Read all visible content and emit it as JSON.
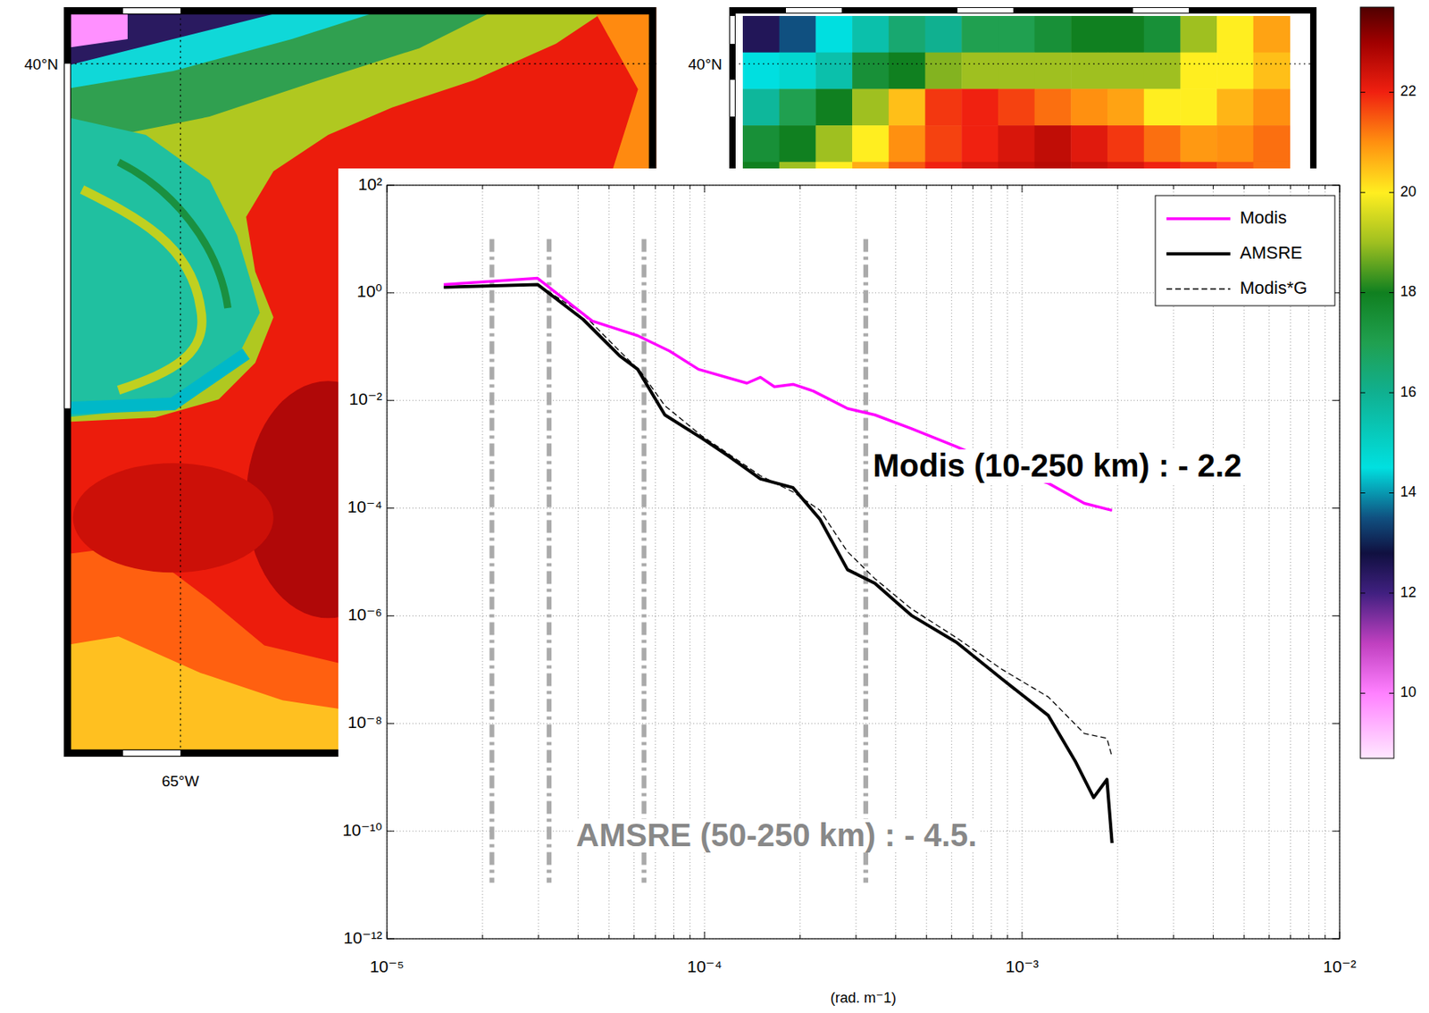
{
  "chart_data": {
    "type": "line",
    "xlabel": "(rad. m⁻1)",
    "log": true,
    "grid": true,
    "legend": "top right",
    "xlim": [
      1e-05,
      0.01
    ],
    "ylim": [
      1e-12,
      100.0
    ],
    "xticks": [
      {
        "value": 1e-05,
        "label": "10⁻⁵"
      },
      {
        "value": 0.0001,
        "label": "10⁻⁴"
      },
      {
        "value": 0.001,
        "label": "10⁻³"
      },
      {
        "value": 0.01,
        "label": "10⁻²"
      }
    ],
    "xminor_ticks": [
      2e-05,
      3e-05,
      4e-05,
      5e-05,
      6e-05,
      7e-05,
      8e-05,
      9e-05,
      0.0002,
      0.0003,
      0.0004,
      0.0005,
      0.0006,
      0.0007,
      0.0008,
      0.0009,
      0.002,
      0.003,
      0.004,
      0.005,
      0.006,
      0.007,
      0.008,
      0.009
    ],
    "yticks": [
      {
        "value": 100.0,
        "label": "10²"
      },
      {
        "value": 1.0,
        "label": "10⁰"
      },
      {
        "value": 0.01,
        "label": "10⁻²"
      },
      {
        "value": 0.0001,
        "label": "10⁻⁴"
      },
      {
        "value": 1e-06,
        "label": "10⁻⁶"
      },
      {
        "value": 1e-08,
        "label": "10⁻⁸"
      },
      {
        "value": 1e-10,
        "label": "10⁻¹⁰"
      },
      {
        "value": 1e-12,
        "label": "10⁻¹²"
      }
    ],
    "series": [
      {
        "name": "Modis",
        "color": "#ff00ff",
        "line_style": "solid",
        "x": [
          1.51e-05,
          2.98e-05,
          4.43e-05,
          6.16e-05,
          7.76e-05,
          9.57e-05,
          0.000136,
          0.00015,
          0.000166,
          0.00019,
          0.00022,
          0.000282,
          0.000344,
          0.000448,
          0.000622,
          0.000867,
          0.00121,
          0.00157,
          0.00192
        ],
        "values": [
          1.43,
          1.87,
          0.3,
          0.16,
          0.083,
          0.038,
          0.021,
          0.027,
          0.018,
          0.02,
          0.015,
          0.0071,
          0.0054,
          0.003,
          0.00138,
          0.00059,
          0.00029,
          0.000123,
          9.1e-05
        ]
      },
      {
        "name": "AMSRE",
        "color": "#000000",
        "line_style": "solid",
        "x": [
          1.51e-05,
          2.98e-05,
          4.15e-05,
          5.4e-05,
          6.16e-05,
          7.5e-05,
          9.8e-05,
          0.000119,
          0.00015,
          0.00019,
          0.000231,
          0.000282,
          0.000344,
          0.000448,
          0.000622,
          0.000867,
          0.00121,
          0.00147,
          0.00168,
          0.00185,
          0.00192
        ],
        "values": [
          1.27,
          1.43,
          0.32,
          0.068,
          0.038,
          0.0054,
          0.002,
          0.00093,
          0.00035,
          0.00024,
          6.2e-05,
          7.2e-06,
          4e-06,
          1.02e-06,
          3.2e-07,
          6.6e-08,
          1.4e-08,
          2e-09,
          4.2e-10,
          9.1e-10,
          6e-11
        ]
      },
      {
        "name": "Modis*G",
        "color": "#000000",
        "line_style": "dashed",
        "x": [
          1.51e-05,
          2.98e-05,
          4.15e-05,
          5.4e-05,
          6.3e-05,
          7.5e-05,
          9.8e-05,
          0.000119,
          0.00015,
          0.00019,
          0.000231,
          0.000282,
          0.000344,
          0.000448,
          0.000622,
          0.000867,
          0.00121,
          0.00157,
          0.00185,
          0.00192
        ],
        "values": [
          1.27,
          1.43,
          0.4,
          0.083,
          0.034,
          0.008,
          0.0022,
          0.00102,
          0.0004,
          0.0002,
          9.1e-05,
          1.55e-05,
          4.9e-06,
          1.35e-06,
          3.9e-07,
          1e-07,
          3.1e-08,
          6.5e-09,
          5.3e-09,
          2.4e-09
        ]
      }
    ],
    "annotations": [
      {
        "text": "Modis (10-250 km) : - 2.2",
        "color": "#000000"
      },
      {
        "text": "AMSRE (50-250 km) : - 4.5.",
        "color": "#888888"
      }
    ],
    "vertical_lines": {
      "x": [
        2.14e-05,
        3.24e-05,
        6.45e-05,
        0.000322
      ],
      "y": [
        10,
        1.1e-11
      ],
      "color": "#aaaaaa"
    }
  },
  "maps": {
    "modis": {
      "lat_label": "40°N",
      "lon_label": "65°W"
    },
    "amsre": {
      "lat_label": "40°N",
      "cells": [
        [
          12.5,
          13.5,
          14.5,
          15.5,
          16.5,
          16,
          17,
          17,
          17.5,
          18,
          18,
          17.5,
          19,
          20,
          20.8
        ],
        [
          14.5,
          14.8,
          15.5,
          17.5,
          18,
          18.8,
          19,
          19,
          19,
          19,
          19,
          19,
          20,
          20,
          20.5
        ],
        [
          15.8,
          17,
          18,
          19,
          20.5,
          21.8,
          22,
          21.7,
          21.3,
          21,
          20.8,
          20,
          20,
          20.6,
          21
        ],
        [
          17.5,
          18,
          19,
          20,
          21,
          21.7,
          22,
          22.3,
          22.6,
          22.2,
          21.8,
          21.3,
          20.9,
          21,
          21.3
        ],
        [
          18,
          19,
          20,
          20.7,
          21.5,
          22,
          22.3,
          22.5,
          22.7,
          22.5,
          22.3,
          22,
          21.8,
          21.5,
          21.3
        ]
      ]
    },
    "colorbar": {
      "range": [
        8.7,
        23.7
      ],
      "ticks": [
        10,
        12,
        14,
        16,
        18,
        20,
        22
      ]
    }
  }
}
